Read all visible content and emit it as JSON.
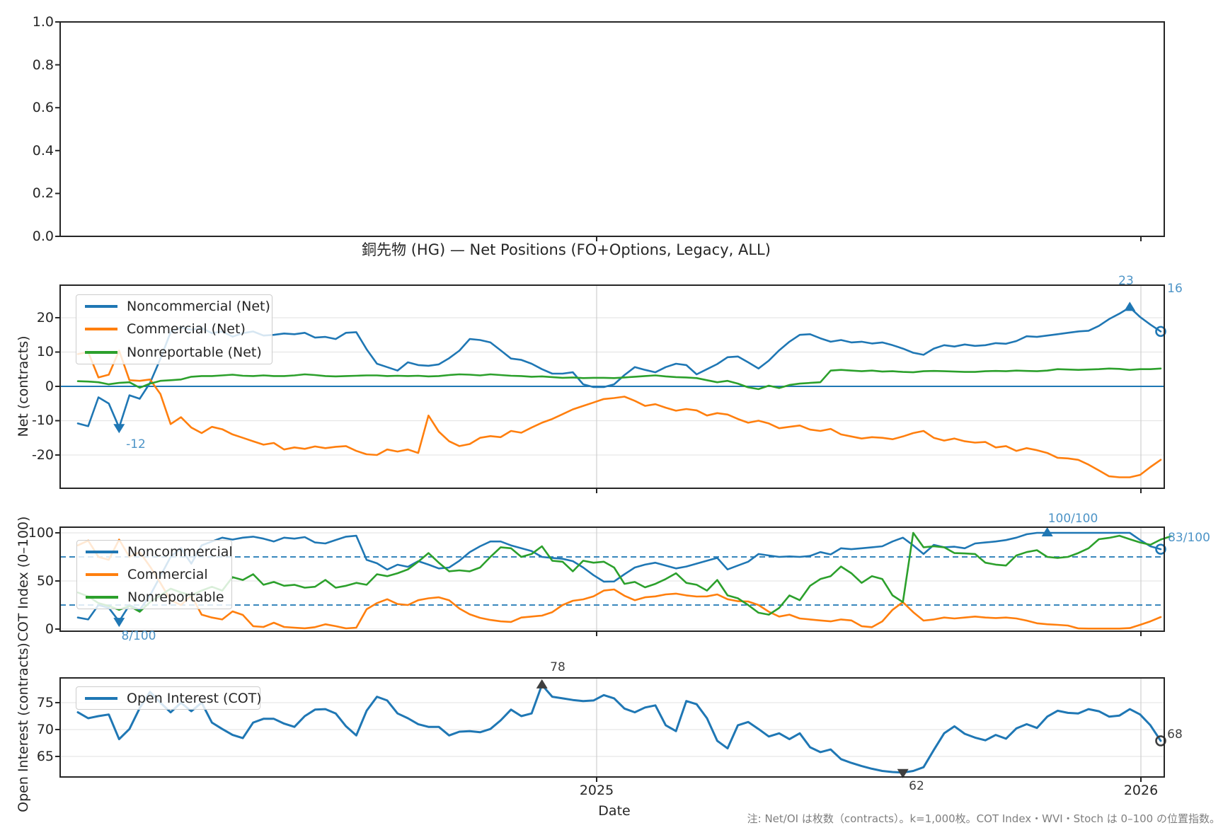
{
  "title": "銅先物 (HG) — Net Positions (FO+Options, Legacy, ALL)",
  "note": "注: Net/OI は枚数（contracts）。k=1,000枚。COT Index・WVI・Stoch は 0–100 の位置指数。",
  "colors": {
    "noncommercial": "#1f77b4",
    "commercial": "#ff7f0e",
    "nonreportable": "#2ca02c",
    "open_interest": "#1f77b4",
    "annotation_blue": "#4d94c7",
    "annotation_dark": "#3f3f3f",
    "axis": "#262626",
    "hgrid": "#e6e6e6",
    "vgrid": "#cfcfcf",
    "dashed": "#1f77b4"
  },
  "axes": {
    "panel1": {
      "yticks": [
        "1.0",
        "0.8",
        "0.6",
        "0.4",
        "0.2",
        "0.0"
      ]
    },
    "panel2": {
      "ylabel": "Net (contracts)",
      "yticks": [
        "20",
        "10",
        "0",
        "-10",
        "-20"
      ],
      "legend": [
        "Noncommercial (Net)",
        "Commercial (Net)",
        "Nonreportable (Net)"
      ]
    },
    "panel3": {
      "ylabel": "COT Index (0–100)",
      "yticks": [
        "100",
        "50",
        "0"
      ],
      "legend": [
        "Noncommercial",
        "Commercial",
        "Nonreportable"
      ]
    },
    "panel4": {
      "ylabel": "Open Interest (contracts)",
      "yticks": [
        "75",
        "70",
        "65"
      ],
      "legend": [
        "Open Interest (COT)"
      ],
      "xticks": [
        "2025",
        "2026"
      ],
      "xlabel": "Date"
    }
  },
  "annotations": {
    "p2_min": "-12",
    "p2_max": "23",
    "p2_end": "16",
    "p3_min": "8/100",
    "p3_max": "100/100",
    "p3_end": "83/100",
    "p4_max": "78",
    "p4_min": "62",
    "p4_end": "68"
  },
  "chart_data": [
    {
      "type": "line",
      "title": "",
      "ylabel": "",
      "ylim": [
        0,
        1
      ],
      "yticks": [
        1.0,
        0.8,
        0.6,
        0.4,
        0.2,
        0.0
      ],
      "series": [],
      "grid": false,
      "comment": "empty top panel, y axis 0.0-1.0"
    },
    {
      "type": "line",
      "title": "銅先物 (HG) — Net Positions (FO+Options, Legacy, ALL)",
      "ylabel": "Net (contracts)",
      "x_axis": "weekly, Jan 2024 - Jan 2026; gridlines at 2025 and 2026",
      "ylim": [
        -29.69,
        29.48
      ],
      "gridlines": [
        20,
        10,
        -10,
        -20
      ],
      "axhline": 0,
      "series": [
        {
          "name": "Noncommercial (Net)",
          "color": "#1f77b4",
          "values": [
            -10.8,
            -11.6,
            -3.2,
            -5,
            -12,
            -2.6,
            -3.6,
            1,
            8,
            15.8,
            17.2,
            16.5,
            17,
            15.5,
            16,
            14.5,
            15.5,
            16,
            14.8,
            15,
            15.4,
            15.2,
            15.6,
            14.2,
            14.4,
            13.8,
            15.6,
            15.8,
            10.8,
            6.6,
            5.6,
            4.6,
            7,
            6.2,
            6,
            6.4,
            8.2,
            10.4,
            13.8,
            13.5,
            12.8,
            10.5,
            8.1,
            7.7,
            6.6,
            5,
            3.7,
            3.7,
            4.1,
            0.6,
            -0.2,
            -0.2,
            0.6,
            3.3,
            5.6,
            4.8,
            4.1,
            5.6,
            6.6,
            6.2,
            3.5,
            5,
            6.5,
            8.5,
            8.7,
            7,
            5.2,
            7.5,
            10.5,
            13,
            15,
            15.2,
            14,
            13,
            13.5,
            12.8,
            13,
            12.5,
            12.8,
            12,
            11,
            9.8,
            9.2,
            11,
            12,
            11.6,
            12.2,
            11.8,
            12,
            12.6,
            12.4,
            13.2,
            14.6,
            14.4,
            14.8,
            15.2,
            15.6,
            16,
            16.2,
            17.6,
            19.6,
            21.2,
            23,
            20.2,
            18,
            16
          ]
        },
        {
          "name": "Commercial (Net)",
          "color": "#ff7f0e",
          "values": [
            9.4,
            10,
            2.6,
            3.4,
            10.4,
            1.8,
            1.6,
            2,
            -2.2,
            -11,
            -9,
            -12,
            -13.6,
            -11.8,
            -12.5,
            -14,
            -15,
            -16,
            -17,
            -16.5,
            -18.4,
            -17.8,
            -18.2,
            -17.5,
            -18,
            -17.6,
            -17.4,
            -18.8,
            -19.8,
            -20,
            -18.4,
            -19,
            -18.4,
            -19.4,
            -8.5,
            -13.2,
            -16,
            -17.4,
            -16.8,
            -15,
            -14.5,
            -14.8,
            -13,
            -13.5,
            -12,
            -10.6,
            -9.5,
            -8.1,
            -6.7,
            -5.7,
            -4.7,
            -3.7,
            -3.4,
            -3,
            -4.2,
            -5.7,
            -5.2,
            -6.2,
            -7.1,
            -6.6,
            -7,
            -8.5,
            -7.8,
            -8.2,
            -9.5,
            -10.6,
            -10,
            -10.8,
            -12.2,
            -11.8,
            -11.4,
            -12.6,
            -13,
            -12.4,
            -14,
            -14.6,
            -15.2,
            -14.8,
            -15,
            -15.4,
            -14.6,
            -13.6,
            -13,
            -15,
            -15.8,
            -15.2,
            -16,
            -16.4,
            -16.2,
            -17.8,
            -17.4,
            -18.8,
            -18,
            -18.6,
            -19.4,
            -20.8,
            -21,
            -21.4,
            -22.8,
            -24.5,
            -26.2,
            -26.5,
            -26.5,
            -25.8,
            -23.5,
            -21.4
          ]
        },
        {
          "name": "Nonreportable (Net)",
          "color": "#2ca02c",
          "values": [
            1.5,
            1.4,
            1.2,
            0.6,
            1,
            1.2,
            -0.4,
            0.8,
            1.6,
            1.8,
            2,
            2.8,
            3,
            3,
            3.2,
            3.4,
            3.1,
            3,
            3.2,
            3,
            3,
            3.2,
            3.5,
            3.3,
            3,
            2.9,
            3,
            3.1,
            3.2,
            3.2,
            3,
            3.1,
            3,
            3.1,
            2.9,
            3,
            3.3,
            3.5,
            3.4,
            3.2,
            3.5,
            3.3,
            3.1,
            3,
            2.8,
            2.9,
            2.7,
            2.5,
            2.6,
            2.4,
            2.5,
            2.5,
            2.4,
            2.6,
            2.8,
            3,
            3.2,
            2.9,
            2.7,
            2.6,
            2.4,
            1.8,
            1.2,
            1.6,
            0.8,
            -0.3,
            -0.8,
            0.2,
            -0.5,
            0.4,
            0.8,
            1,
            1.2,
            4.6,
            4.8,
            4.6,
            4.4,
            4.6,
            4.3,
            4.4,
            4.2,
            4.1,
            4.4,
            4.5,
            4.4,
            4.3,
            4.2,
            4.2,
            4.4,
            4.5,
            4.4,
            4.6,
            4.5,
            4.4,
            4.6,
            5,
            4.9,
            4.8,
            4.9,
            5,
            5.2,
            5.1,
            4.8,
            5,
            5,
            5.2
          ]
        }
      ],
      "markers": [
        {
          "series": 0,
          "i": 4,
          "shape": "down",
          "label": "-12"
        },
        {
          "series": 0,
          "i": 102,
          "shape": "up",
          "label": "23"
        },
        {
          "series": 0,
          "i": 105,
          "shape": "circle",
          "label": "16"
        }
      ]
    },
    {
      "type": "line",
      "title": "COT Index (0-100)",
      "ylabel": "COT Index (0–100)",
      "ylim": [
        -2.21,
        105.88
      ],
      "gridlines": [
        100,
        50,
        0
      ],
      "dashed_hlines": [
        75,
        25
      ],
      "series": [
        {
          "name": "Noncommercial",
          "color": "#1f77b4",
          "values": [
            12,
            10,
            25,
            22,
            8,
            25,
            20,
            35,
            55,
            75,
            84,
            68,
            87,
            91,
            95,
            93,
            95,
            96,
            94,
            91,
            95,
            94,
            95.6,
            90,
            89,
            92.6,
            96,
            97,
            72,
            68.4,
            61.8,
            66.9,
            64.7,
            70.6,
            67,
            63,
            64,
            71,
            80,
            86,
            91,
            91,
            87,
            84,
            81,
            75,
            74,
            73,
            70.6,
            64,
            56,
            49.3,
            49.5,
            57,
            64,
            67,
            69,
            66,
            63,
            65,
            68,
            71,
            74,
            62,
            66,
            70,
            78,
            76.5,
            75,
            75.5,
            75,
            76,
            80,
            77.6,
            84,
            83,
            84,
            85,
            86,
            91,
            95,
            87,
            78,
            87.5,
            85,
            85.6,
            84,
            89,
            90,
            91,
            92.5,
            95,
            98.5,
            100,
            100,
            100,
            100,
            100,
            100,
            100,
            100,
            100,
            100,
            92.6,
            86,
            83
          ]
        },
        {
          "name": "Commercial",
          "color": "#ff7f0e",
          "values": [
            87,
            92,
            75,
            72,
            93,
            75,
            80,
            65,
            48,
            30,
            25,
            35,
            15,
            12,
            10,
            18.4,
            14.7,
            3,
            2.2,
            6.6,
            2.2,
            1.5,
            0.8,
            2,
            5,
            3,
            0.7,
            1.5,
            20.6,
            27,
            31,
            26,
            25,
            30,
            32,
            33,
            30,
            21.3,
            15.4,
            11.7,
            9.5,
            8,
            7.4,
            12,
            13,
            14,
            17.6,
            25,
            29.4,
            30.9,
            34,
            40,
            41.2,
            34.6,
            30,
            33,
            34,
            36,
            36.8,
            35,
            33.8,
            34,
            36,
            31,
            29,
            28.7,
            25,
            18,
            13,
            15,
            11,
            10,
            9,
            8,
            10,
            9,
            3,
            2,
            8,
            20,
            28,
            17.6,
            8.8,
            10,
            12,
            11,
            12,
            13,
            12,
            11.5,
            12,
            11,
            8.8,
            6,
            5,
            4.4,
            3.7,
            0.7,
            0.5,
            0.5,
            0.5,
            0.5,
            1,
            4.4,
            8,
            12.5
          ]
        },
        {
          "name": "Nonreportable",
          "color": "#2ca02c",
          "values": [
            38,
            34,
            27,
            24,
            20,
            24,
            18,
            28,
            35,
            42,
            38,
            35,
            40,
            44,
            40,
            54,
            51,
            57,
            46,
            49,
            45,
            46,
            43,
            44,
            51,
            43,
            45,
            48,
            46,
            57,
            55,
            58,
            62,
            70,
            79,
            69,
            60,
            61,
            60,
            64,
            75,
            85,
            84,
            75,
            78,
            86,
            71,
            70,
            60,
            71,
            69,
            70,
            64,
            47,
            49,
            43.4,
            47,
            52,
            58,
            48,
            46,
            40,
            51,
            35,
            32,
            25,
            17,
            15,
            22,
            35,
            30,
            45,
            52,
            55,
            65,
            58,
            48,
            55,
            52,
            35,
            28,
            100,
            85,
            86,
            85,
            79,
            78.6,
            78,
            69,
            67,
            66,
            76.5,
            80,
            82,
            75,
            74,
            75,
            79,
            84,
            93.4,
            94.8,
            97,
            93.4,
            90,
            87.6,
            93,
            96.5
          ]
        }
      ],
      "markers": [
        {
          "series": 0,
          "i": 4,
          "shape": "down",
          "label": "8/100"
        },
        {
          "series": 0,
          "i": 94,
          "shape": "up",
          "label": "100/100"
        },
        {
          "series": 0,
          "i": 105,
          "shape": "circle",
          "label": "83/100"
        }
      ]
    },
    {
      "type": "line",
      "title": "Open Interest",
      "ylabel": "Open Interest (contracts)",
      "xlabel": "Date",
      "ylim": [
        61.18,
        79.6
      ],
      "gridlines": [
        75,
        70,
        65
      ],
      "xtick_values": [
        "2025",
        "2026"
      ],
      "series": [
        {
          "name": "Open Interest (COT)",
          "color": "#1f77b4",
          "values": [
            73.2,
            72.1,
            72.5,
            72.8,
            68.2,
            70.1,
            74,
            77,
            75,
            73.2,
            75,
            73.4,
            75,
            71.3,
            70.1,
            69,
            68.4,
            71.3,
            72,
            72,
            71.1,
            70.5,
            72.5,
            73.7,
            73.8,
            73,
            70.6,
            68.9,
            73.5,
            76.1,
            75.4,
            73,
            72.1,
            71,
            70.5,
            70.5,
            68.9,
            69.6,
            69.7,
            69.5,
            70.1,
            71.7,
            73.7,
            72.5,
            73,
            78.3,
            76.1,
            75.8,
            75.5,
            75.3,
            75.4,
            76.4,
            75.8,
            73.9,
            73.2,
            74.1,
            74.5,
            70.8,
            69.7,
            75.3,
            74.7,
            72.1,
            67.9,
            66.5,
            70.8,
            71.4,
            70.1,
            68.7,
            69.3,
            68.2,
            69.3,
            66.7,
            65.8,
            66.3,
            64.5,
            63.8,
            63.2,
            62.7,
            62.3,
            62.1,
            62,
            62.3,
            63,
            66.2,
            69.3,
            70.6,
            69.2,
            68.5,
            68,
            69,
            68.3,
            70.2,
            71,
            70.3,
            72.4,
            73.5,
            73.1,
            73,
            73.8,
            73.4,
            72.4,
            72.6,
            73.8,
            72.8,
            70.8,
            67.9
          ]
        }
      ],
      "markers": [
        {
          "series": 0,
          "i": 45,
          "shape": "up",
          "label": "78",
          "color": "#3f3f3f"
        },
        {
          "series": 0,
          "i": 80,
          "shape": "down",
          "label": "62",
          "color": "#3f3f3f"
        },
        {
          "series": 0,
          "i": 105,
          "shape": "circle",
          "label": "68",
          "color": "#3f3f3f"
        }
      ]
    }
  ]
}
